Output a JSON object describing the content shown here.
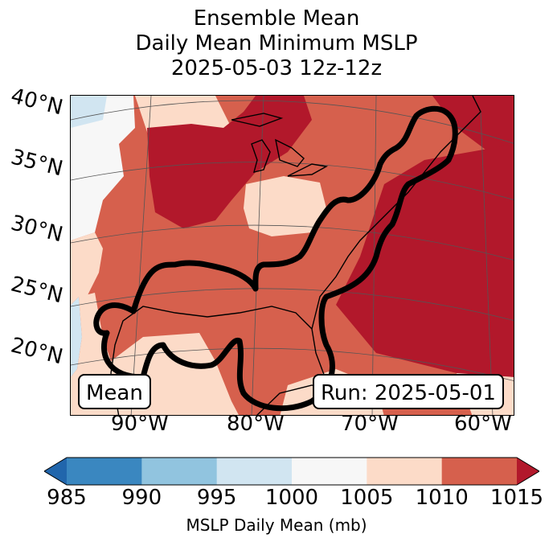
{
  "title": {
    "line1": "Ensemble Mean",
    "line2": "Daily Mean Minimum MSLP",
    "line3": "2025-05-03 12z-12z"
  },
  "map": {
    "latitude_labels": [
      "40°N",
      "35°N",
      "30°N",
      "25°N",
      "20°N"
    ],
    "longitude_labels": [
      "90°W",
      "80°W",
      "70°W",
      "60°W"
    ],
    "mean_box": "Mean",
    "run_box": "Run: 2025-05-01",
    "outline_color": "#000000"
  },
  "colorbar": {
    "label": "MSLP Daily Mean (mb)",
    "ticks": [
      "985",
      "990",
      "995",
      "1000",
      "1005",
      "1010",
      "1015"
    ],
    "bins": [
      {
        "range": "985-990",
        "color": "#3a87c0"
      },
      {
        "range": "990-995",
        "color": "#91c4df"
      },
      {
        "range": "995-1000",
        "color": "#d1e5f1"
      },
      {
        "range": "1000-1005",
        "color": "#f7f7f7"
      },
      {
        "range": "1005-1010",
        "color": "#fcdbc8"
      },
      {
        "range": "1010-1015",
        "color": "#d6604d"
      }
    ],
    "under_color": "#2166ac",
    "over_color": "#b2182b"
  }
}
